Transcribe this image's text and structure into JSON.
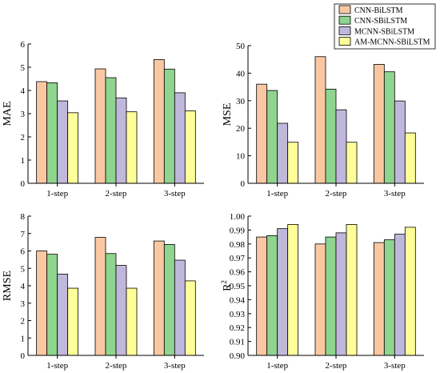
{
  "legend": [
    {
      "name": "CNN-BiLSTM",
      "color": "#f9c8a2"
    },
    {
      "name": "CNN-SBiLSTM",
      "color": "#8fd48f"
    },
    {
      "name": "MCNN-SBiLSTM",
      "color": "#c0b7dc"
    },
    {
      "name": "AM-MCNN-SBiLSTM",
      "color": "#ffff99"
    }
  ],
  "chart_data": [
    {
      "type": "bar",
      "categories": [
        "1-step",
        "2-step",
        "3-step"
      ],
      "ylabel": "MAE",
      "ylim": [
        0,
        6
      ],
      "yticks": [
        "0",
        "1",
        "2",
        "3",
        "4",
        "5",
        "6"
      ],
      "series": [
        {
          "name": "CNN-BiLSTM",
          "values": [
            4.38,
            4.93,
            5.33
          ]
        },
        {
          "name": "CNN-SBiLSTM",
          "values": [
            4.33,
            4.55,
            4.92
          ]
        },
        {
          "name": "MCNN-SBiLSTM",
          "values": [
            3.55,
            3.68,
            3.9
          ]
        },
        {
          "name": "AM-MCNN-SBiLSTM",
          "values": [
            3.04,
            3.08,
            3.12
          ]
        }
      ]
    },
    {
      "type": "bar",
      "categories": [
        "1-step",
        "2-step",
        "3-step"
      ],
      "ylabel": "MSE",
      "ylim": [
        0,
        50
      ],
      "yticks": [
        "0",
        "10",
        "20",
        "30",
        "40",
        "50"
      ],
      "series": [
        {
          "name": "CNN-BiLSTM",
          "values": [
            36.0,
            46.0,
            43.2
          ]
        },
        {
          "name": "CNN-SBiLSTM",
          "values": [
            33.7,
            34.2,
            40.5
          ]
        },
        {
          "name": "MCNN-SBiLSTM",
          "values": [
            21.8,
            26.7,
            29.9
          ]
        },
        {
          "name": "AM-MCNN-SBiLSTM",
          "values": [
            14.9,
            14.9,
            18.3
          ]
        }
      ]
    },
    {
      "type": "bar",
      "categories": [
        "1-step",
        "2-step",
        "3-step"
      ],
      "ylabel": "RMSE",
      "ylim": [
        0,
        8
      ],
      "yticks": [
        "0",
        "1",
        "2",
        "3",
        "4",
        "5",
        "6",
        "7",
        "8"
      ],
      "series": [
        {
          "name": "CNN-BiLSTM",
          "values": [
            6.0,
            6.78,
            6.57
          ]
        },
        {
          "name": "CNN-SBiLSTM",
          "values": [
            5.81,
            5.85,
            6.37
          ]
        },
        {
          "name": "MCNN-SBiLSTM",
          "values": [
            4.67,
            5.17,
            5.47
          ]
        },
        {
          "name": "AM-MCNN-SBiLSTM",
          "values": [
            3.86,
            3.86,
            4.28
          ]
        }
      ]
    },
    {
      "type": "bar",
      "categories": [
        "1-step",
        "2-step",
        "3-step"
      ],
      "ylabel": "R",
      "ylabel_sup": "2",
      "ylim": [
        0.9,
        1.0
      ],
      "yticks": [
        "0.90",
        "0.91",
        "0.92",
        "0.93",
        "0.94",
        "0.95",
        "0.96",
        "0.97",
        "0.98",
        "0.99",
        "1.00"
      ],
      "series": [
        {
          "name": "CNN-BiLSTM",
          "values": [
            0.985,
            0.98,
            0.981
          ]
        },
        {
          "name": "CNN-SBiLSTM",
          "values": [
            0.986,
            0.985,
            0.983
          ]
        },
        {
          "name": "MCNN-SBiLSTM",
          "values": [
            0.991,
            0.988,
            0.987
          ]
        },
        {
          "name": "AM-MCNN-SBiLSTM",
          "values": [
            0.994,
            0.994,
            0.992
          ]
        }
      ]
    }
  ]
}
